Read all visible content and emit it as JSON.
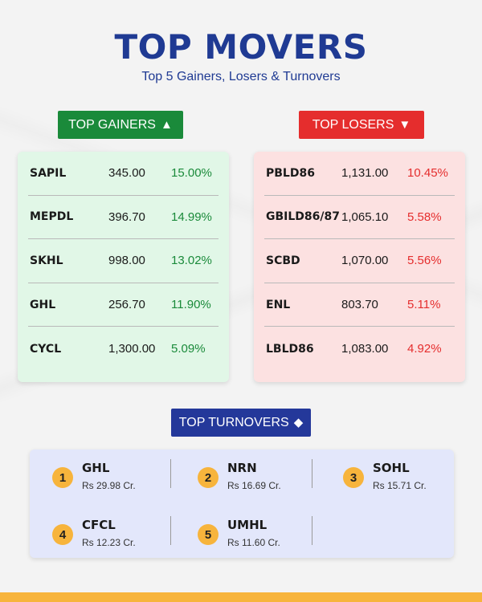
{
  "header": {
    "title": "TOP MOVERS",
    "subtitle": "Top 5 Gainers, Losers & Turnovers"
  },
  "gainers": {
    "label": "TOP GAINERS",
    "icon": "triangle-up-icon",
    "rows": [
      {
        "symbol": "SAPIL",
        "price": "345.00",
        "change": "15.00%"
      },
      {
        "symbol": "MEPDL",
        "price": "396.70",
        "change": "14.99%"
      },
      {
        "symbol": "SKHL",
        "price": "998.00",
        "change": "13.02%"
      },
      {
        "symbol": "GHL",
        "price": "256.70",
        "change": "11.90%"
      },
      {
        "symbol": "CYCL",
        "price": "1,300.00",
        "change": "5.09%"
      }
    ]
  },
  "losers": {
    "label": "TOP LOSERS",
    "icon": "triangle-down-icon",
    "rows": [
      {
        "symbol": "PBLD86",
        "price": "1,131.00",
        "change": "10.45%"
      },
      {
        "symbol": "GBILD86/87",
        "price": "1,065.10",
        "change": "5.58%"
      },
      {
        "symbol": "SCBD",
        "price": "1,070.00",
        "change": "5.56%"
      },
      {
        "symbol": "ENL",
        "price": "803.70",
        "change": "5.11%"
      },
      {
        "symbol": "LBLD86",
        "price": "1,083.00",
        "change": "4.92%"
      }
    ]
  },
  "turnovers": {
    "label": "TOP TURNOVERS",
    "icon": "diamond-icon",
    "items": [
      {
        "rank": "1",
        "symbol": "GHL",
        "value": "Rs 29.98 Cr."
      },
      {
        "rank": "2",
        "symbol": "NRN",
        "value": "Rs 16.69 Cr."
      },
      {
        "rank": "3",
        "symbol": "SOHL",
        "value": "Rs 15.71 Cr."
      },
      {
        "rank": "4",
        "symbol": "CFCL",
        "value": "Rs 12.23 Cr."
      },
      {
        "rank": "5",
        "symbol": "UMHL",
        "value": "Rs 11.60 Cr."
      }
    ]
  },
  "colors": {
    "title": "#1f3a93",
    "gain": "#1a8a3a",
    "loss": "#e52d2d",
    "turnover": "#24389a",
    "accent": "#f7b43c"
  }
}
